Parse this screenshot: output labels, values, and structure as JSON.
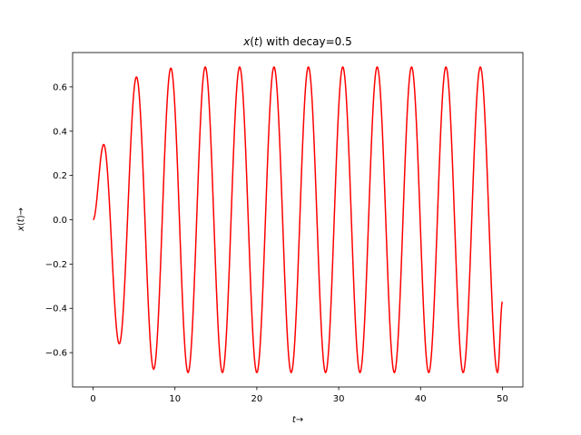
{
  "chart_data": {
    "type": "line",
    "title_parts": {
      "var": "x",
      "open": "(",
      "arg": "t",
      "close": ")",
      "rest": " with decay=0.5"
    },
    "xlabel_parts": {
      "var": "t",
      "arrow": "→"
    },
    "ylabel_parts": {
      "var": "x",
      "open": "(",
      "arg": "t",
      "close": ")",
      "arrow": "→"
    },
    "xlim": [
      -2.5,
      52.5
    ],
    "ylim": [
      -0.755,
      0.755
    ],
    "xticks": [
      0,
      10,
      20,
      30,
      40,
      50
    ],
    "xtick_labels": [
      "0",
      "10",
      "20",
      "30",
      "40",
      "50"
    ],
    "yticks": [
      -0.6,
      -0.4,
      -0.2,
      0.0,
      0.2,
      0.4,
      0.6
    ],
    "ytick_labels": [
      "−0.6",
      "−0.4",
      "−0.2",
      "0.0",
      "0.2",
      "0.4",
      "0.6"
    ],
    "grid": false,
    "line_color": "#ff0000",
    "series": [
      {
        "x": [
          0,
          1.3,
          3.2,
          5.3,
          7.4,
          9.5,
          11.6,
          13.7,
          15.8,
          17.9,
          20.0,
          22.1,
          24.2,
          26.3,
          28.4,
          30.5,
          32.6,
          34.7,
          36.8,
          38.9,
          41.0,
          43.1,
          45.2,
          47.3,
          49.4,
          50
        ],
        "y": [
          0,
          0.34,
          -0.56,
          0.645,
          -0.675,
          0.685,
          -0.69,
          0.69,
          -0.69,
          0.69,
          -0.69,
          0.69,
          -0.69,
          0.69,
          -0.69,
          0.69,
          -0.69,
          0.69,
          -0.69,
          0.69,
          -0.69,
          0.69,
          -0.69,
          0.69,
          -0.69,
          -0.37
        ]
      }
    ]
  }
}
